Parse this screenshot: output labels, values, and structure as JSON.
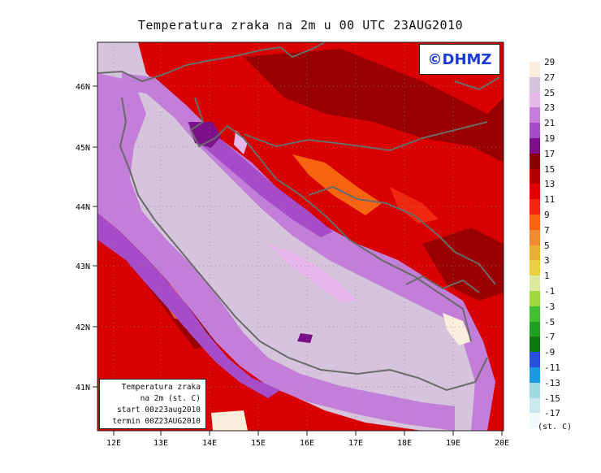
{
  "title": "Temperatura zraka na 2m u 00 UTC 23AUG2010",
  "logo": "©DHMZ",
  "info_box": {
    "line1": "Temperatura zraka",
    "line2": "na 2m (st. C)",
    "line3": "start 00z23aug2010",
    "line4": "termin 00Z23AUG2010"
  },
  "axes": {
    "lat_ticks": [
      "46N",
      "45N",
      "44N",
      "43N",
      "42N",
      "41N"
    ],
    "lon_ticks": [
      "12E",
      "13E",
      "14E",
      "15E",
      "16E",
      "17E",
      "18E",
      "19E",
      "20E"
    ]
  },
  "legend": {
    "unit": "(st. C)",
    "labels": [
      "29",
      "27",
      "25",
      "23",
      "21",
      "19",
      "17",
      "15",
      "13",
      "11",
      "9",
      "7",
      "5",
      "3",
      "1",
      "-1",
      "-3",
      "-5",
      "-7",
      "-9",
      "-11",
      "-13",
      "-15",
      "-17"
    ],
    "colors": [
      "#fbeedc",
      "#d6c4dc",
      "#e8b8ec",
      "#c27ed8",
      "#a64cc8",
      "#7d0f8a",
      "#8a0000",
      "#b00000",
      "#e00000",
      "#f02810",
      "#f86410",
      "#f08a30",
      "#e8b030",
      "#e8d040",
      "#dce8a0",
      "#a0d840",
      "#40c030",
      "#20a020",
      "#107810",
      "#2a50e0",
      "#1a9ae0",
      "#a0d8e0",
      "#c8eaee",
      "#f0fafa"
    ]
  },
  "colors": {
    "sea": "#d6c4dc",
    "coast_purple": "#c27ed8",
    "deep_purple": "#a64cc8",
    "land_red": "#d80000",
    "land_dark": "#9a0000",
    "border_line": "#6a6a6a"
  }
}
